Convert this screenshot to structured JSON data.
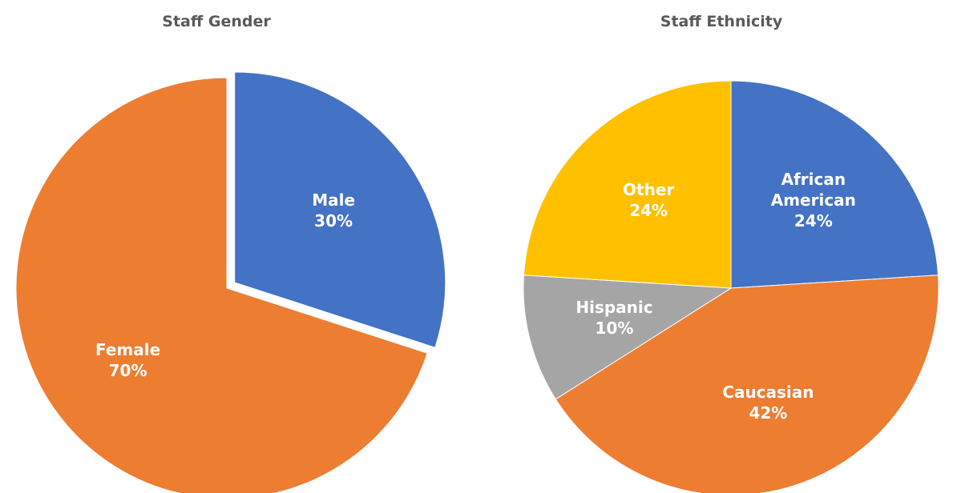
{
  "chart_data": [
    {
      "type": "pie",
      "title": "Staff Gender",
      "categories": [
        "Male",
        "Female"
      ],
      "values": [
        30,
        70
      ],
      "value_labels": [
        "30%",
        "70%"
      ],
      "colors": [
        "#4472c4",
        "#ed7d31"
      ],
      "explode": [
        true,
        false
      ]
    },
    {
      "type": "pie",
      "title": "Staff Ethnicity",
      "categories": [
        "African American",
        "Caucasian",
        "Hispanic",
        "Other"
      ],
      "values": [
        24,
        42,
        10,
        24
      ],
      "value_labels": [
        "24%",
        "42%",
        "10%",
        "24%"
      ],
      "colors": [
        "#4472c4",
        "#ed7d31",
        "#a5a5a5",
        "#ffc000"
      ],
      "explode": [
        false,
        false,
        false,
        false
      ]
    }
  ]
}
